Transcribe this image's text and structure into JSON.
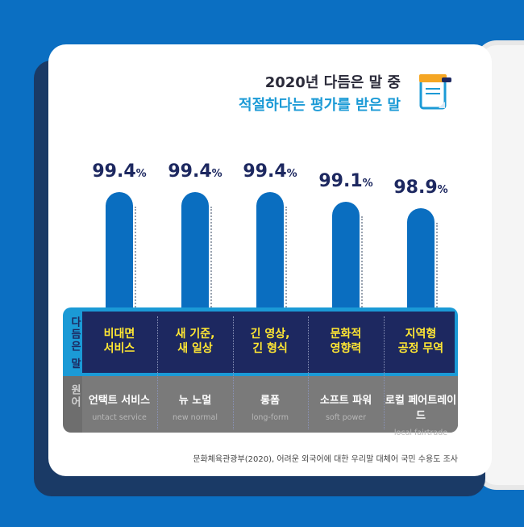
{
  "title_line1": "2020년 다듬은 말 중",
  "title_line2": "적절하다는 평가를 받은 말",
  "row_labels": {
    "refined": "다듬은 말",
    "original": "원어"
  },
  "source": "문화체육관광부(2020), 어려운 외국어에 대한 우리말 대체어 국민 수용도 조사",
  "icons": [
    "note-icon"
  ],
  "colors": {
    "bar": "#0a6ec0",
    "title_accent": "#1b9ad6",
    "refined_text": "#ffe733",
    "navy": "#1d2860",
    "background": "#0b6fc2"
  },
  "chart_data": {
    "type": "bar",
    "categories": [
      "비대면 서비스",
      "새 기준, 새 일상",
      "긴 영상, 긴 형식",
      "문화적 영향력",
      "지역형 공정 무역"
    ],
    "values": [
      99.4,
      99.4,
      99.4,
      99.1,
      98.9
    ],
    "unit": "%",
    "labels": [
      "99.4",
      "99.4",
      "99.4",
      "99.1",
      "98.9"
    ],
    "refined": [
      {
        "l1": "비대면",
        "l2": "서비스"
      },
      {
        "l1": "새 기준,",
        "l2": "새 일상"
      },
      {
        "l1": "긴 영상,",
        "l2": "긴 형식"
      },
      {
        "l1": "문화적",
        "l2": "영향력"
      },
      {
        "l1": "지역형",
        "l2": "공정 무역"
      }
    ],
    "originals": [
      {
        "ko": "언택트 서비스",
        "en": "untact service"
      },
      {
        "ko": "뉴 노멀",
        "en": "new normal"
      },
      {
        "ko": "롱폼",
        "en": "long-form"
      },
      {
        "ko": "소프트 파워",
        "en": "soft power"
      },
      {
        "ko": "로컬 페어트레이드",
        "en": "local fairtrade"
      }
    ]
  }
}
